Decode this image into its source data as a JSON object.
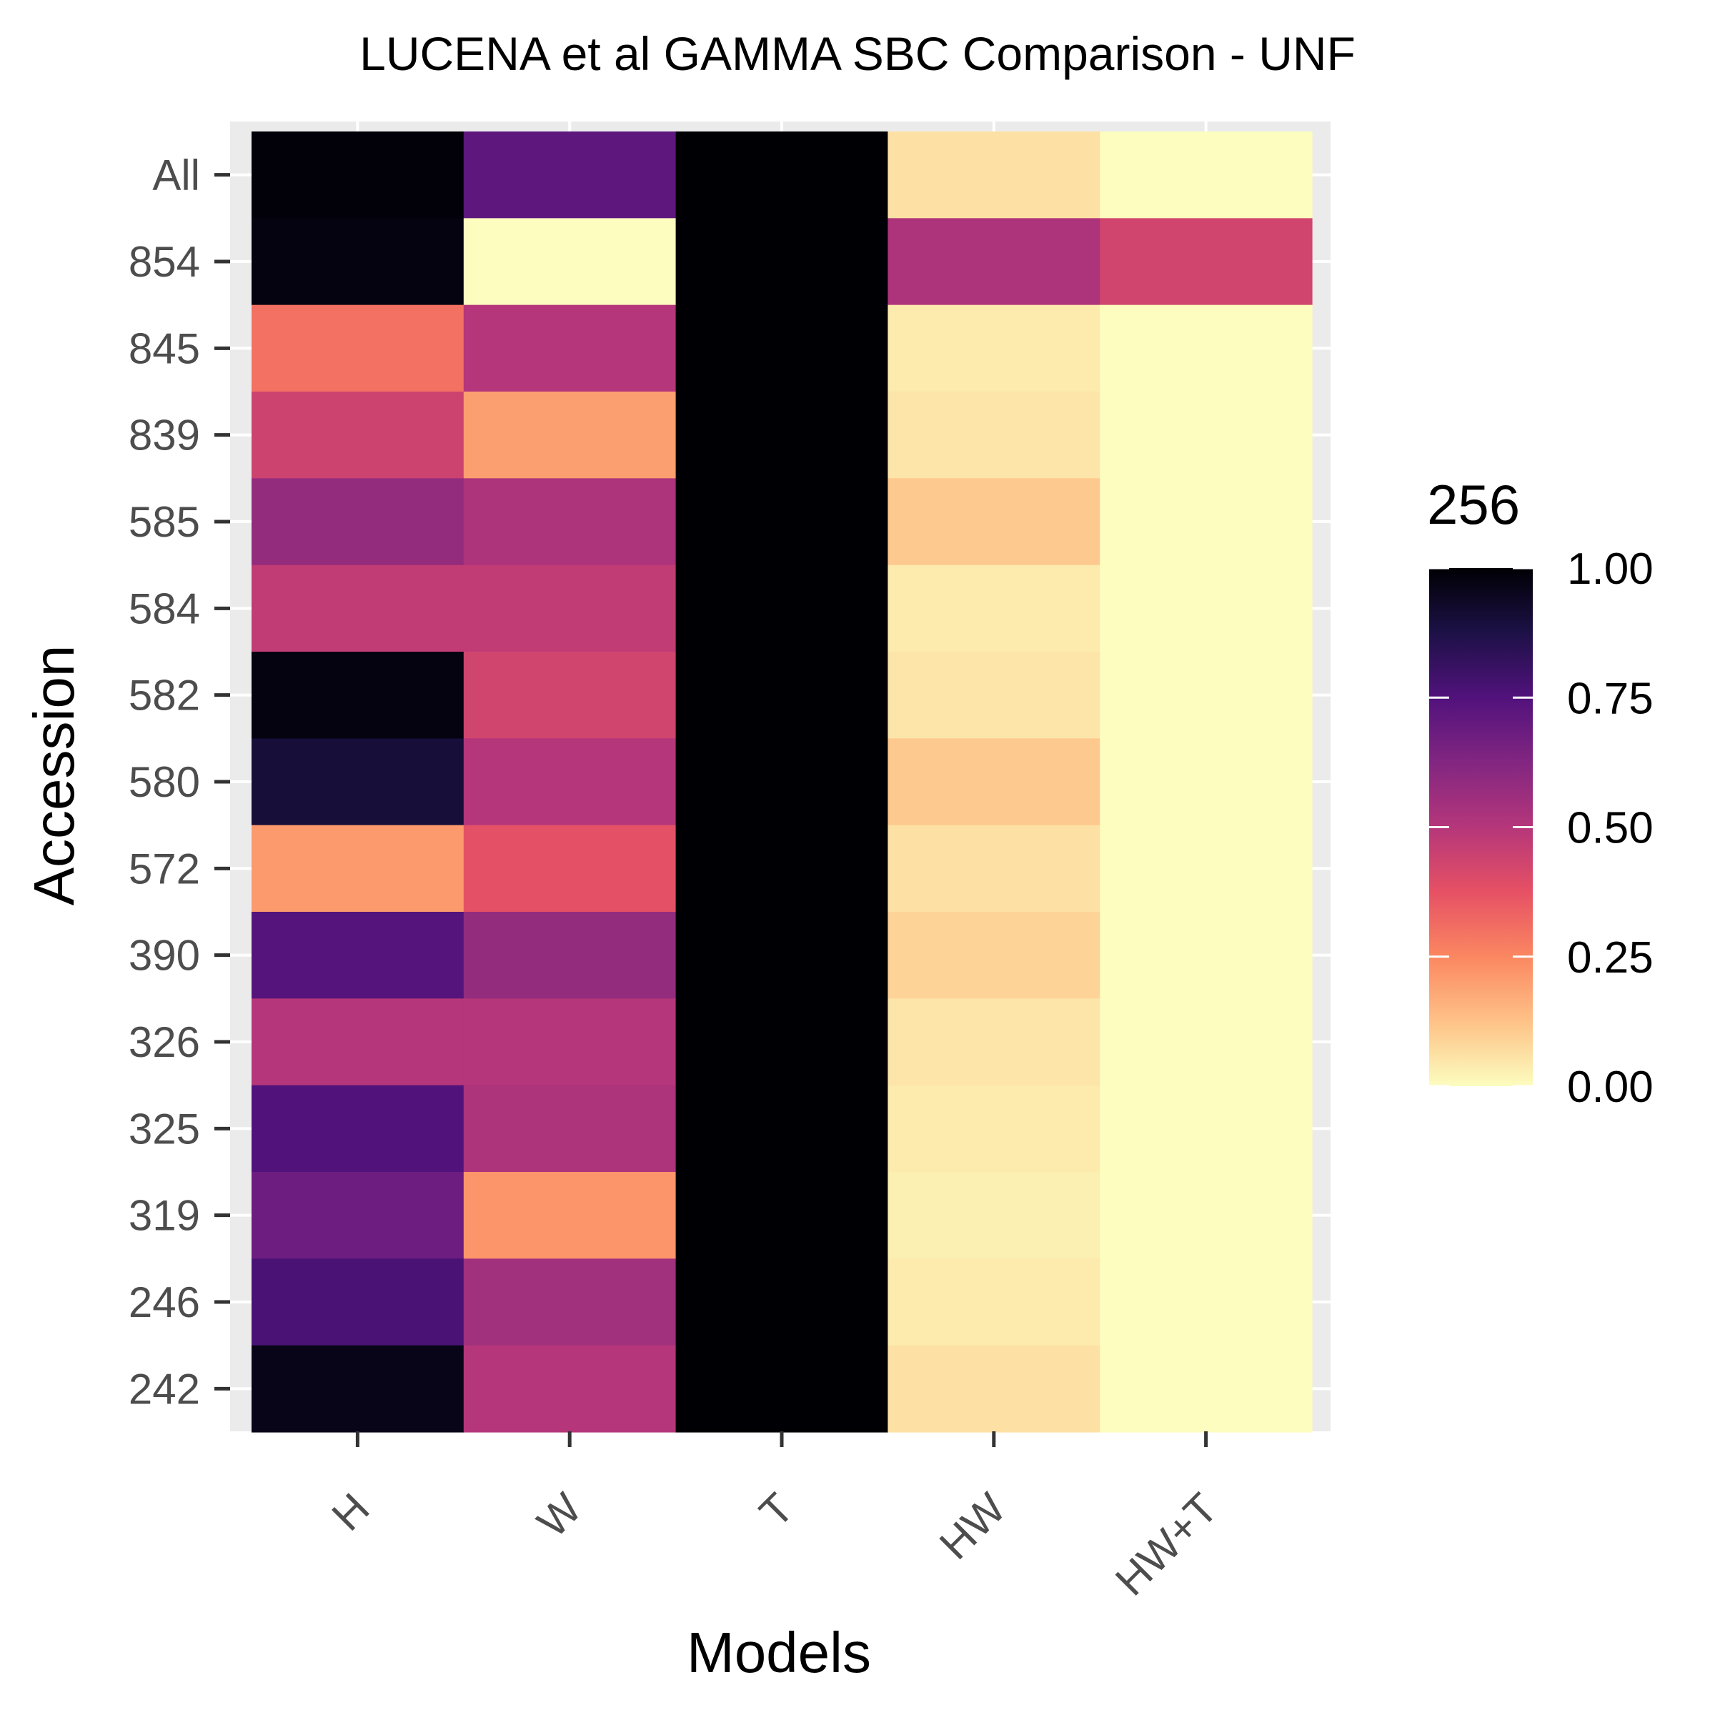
{
  "chart_data": {
    "type": "heatmap",
    "title": "LUCENA et al GAMMA SBC Comparison - UNF",
    "xlabel": "Models",
    "ylabel": "Accession",
    "x_categories": [
      "H",
      "W",
      "T",
      "HW",
      "HW+T"
    ],
    "y_categories": [
      "All",
      "854",
      "845",
      "839",
      "585",
      "584",
      "582",
      "580",
      "572",
      "390",
      "326",
      "325",
      "319",
      "246",
      "242"
    ],
    "values": [
      [
        0.99,
        0.72,
        1.0,
        0.06,
        0.0
      ],
      [
        0.98,
        0.0,
        1.0,
        0.52,
        0.43
      ],
      [
        0.3,
        0.5,
        1.0,
        0.04,
        0.0
      ],
      [
        0.44,
        0.2,
        1.0,
        0.05,
        0.0
      ],
      [
        0.58,
        0.52,
        1.0,
        0.11,
        0.0
      ],
      [
        0.47,
        0.47,
        1.0,
        0.04,
        0.0
      ],
      [
        0.98,
        0.43,
        1.0,
        0.05,
        0.0
      ],
      [
        0.9,
        0.5,
        1.0,
        0.11,
        0.0
      ],
      [
        0.21,
        0.38,
        1.0,
        0.06,
        0.0
      ],
      [
        0.74,
        0.58,
        1.0,
        0.09,
        0.0
      ],
      [
        0.5,
        0.5,
        1.0,
        0.05,
        0.0
      ],
      [
        0.75,
        0.52,
        1.0,
        0.04,
        0.0
      ],
      [
        0.68,
        0.22,
        1.0,
        0.03,
        0.0
      ],
      [
        0.77,
        0.55,
        1.0,
        0.04,
        0.0
      ],
      [
        0.96,
        0.5,
        1.0,
        0.06,
        0.0
      ]
    ],
    "legend": {
      "title": "256",
      "ticks": [
        "1.00",
        "0.75",
        "0.50",
        "0.25",
        "0.00"
      ],
      "tick_values": [
        1.0,
        0.75,
        0.5,
        0.25,
        0.0
      ],
      "range": [
        0,
        1
      ],
      "position": "right"
    },
    "colormap": "magma",
    "colormap_stops": [
      "#fcfdbf",
      "#fec287",
      "#fb8761",
      "#e65164",
      "#b5367a",
      "#822681",
      "#51127c",
      "#1d1147",
      "#000004"
    ],
    "grid": true,
    "panel_background": "#ebebeb"
  }
}
